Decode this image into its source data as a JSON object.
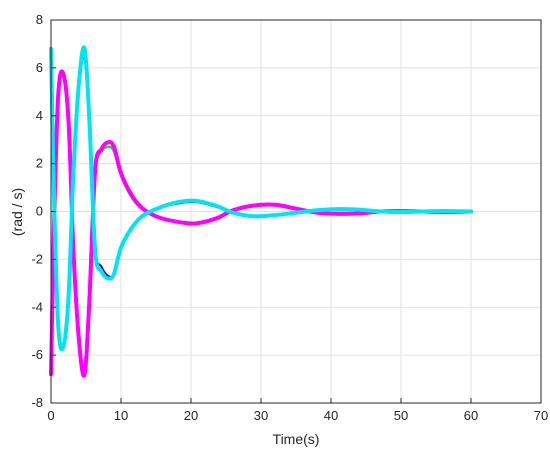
{
  "chart_data": {
    "type": "line",
    "title": "",
    "xlabel": "Time(s)",
    "ylabel": "(rad / s)",
    "xlim": [
      0,
      70
    ],
    "ylim": [
      -8,
      8
    ],
    "xticks": [
      0,
      10,
      20,
      30,
      40,
      50,
      60,
      70
    ],
    "yticks": [
      -8,
      -6,
      -4,
      -2,
      0,
      2,
      4,
      6,
      8
    ],
    "grid": true,
    "legend": "none",
    "series": [
      {
        "color": "#0000a0",
        "width": 2,
        "x": [
          0,
          0.4,
          1.0,
          1.7,
          2.5,
          3.2,
          4.0,
          4.8,
          5.5,
          6.3,
          7.2,
          8.2,
          9.0,
          10.0,
          11.5,
          13.0,
          15.0,
          17.5,
          20.5,
          23.5,
          26.0,
          29.0,
          32.0,
          35.0,
          38.0,
          41.0,
          44.0,
          47.0,
          50.0,
          53.0,
          56.0,
          60.0
        ],
        "y": [
          6.7,
          1.0,
          -4.5,
          -5.6,
          -3.5,
          1.5,
          5.2,
          6.4,
          3.5,
          -1.5,
          -2.3,
          -2.7,
          -2.6,
          -1.5,
          -0.7,
          -0.2,
          0.1,
          0.3,
          0.4,
          0.2,
          -0.05,
          -0.2,
          -0.15,
          -0.05,
          0.05,
          0.1,
          0.08,
          0.0,
          -0.02,
          0.0,
          0.02,
          0.0
        ]
      },
      {
        "color": "#3cc83c",
        "width": 2.5,
        "x": [
          0,
          0.4,
          1.0,
          1.7,
          2.5,
          3.2,
          4.0,
          4.8,
          5.5,
          6.3,
          7.2,
          8.2,
          9.0,
          10.0,
          11.5,
          13.0,
          15.0,
          17.5,
          20.5,
          23.5,
          26.0,
          29.0,
          32.0,
          35.0,
          38.0,
          41.0,
          44.0,
          47.0,
          50.0,
          53.0,
          56.0,
          60.0
        ],
        "y": [
          -6.7,
          -1.0,
          4.6,
          5.7,
          3.7,
          -1.6,
          -5.3,
          -6.5,
          -3.5,
          1.6,
          2.5,
          2.7,
          2.5,
          1.5,
          0.6,
          0.1,
          -0.2,
          -0.4,
          -0.5,
          -0.3,
          0.05,
          0.25,
          0.25,
          0.1,
          -0.05,
          -0.1,
          -0.08,
          0.0,
          0.02,
          0.0,
          -0.02,
          0.0
        ]
      },
      {
        "color": "#ff00ff",
        "width": 4,
        "x": [
          0,
          0.4,
          1.0,
          1.7,
          2.5,
          3.2,
          4.0,
          4.8,
          5.5,
          6.3,
          7.2,
          8.2,
          9.0,
          10.0,
          11.5,
          13.0,
          15.0,
          17.5,
          20.5,
          23.5,
          26.0,
          29.0,
          32.0,
          35.0,
          38.0,
          41.0,
          44.0,
          47.0,
          50.0,
          53.0,
          56.0,
          60.0
        ],
        "y": [
          -6.8,
          -1.0,
          4.7,
          5.8,
          3.8,
          -1.6,
          -5.4,
          -6.8,
          -3.6,
          1.7,
          2.6,
          2.9,
          2.7,
          1.6,
          0.7,
          0.15,
          -0.2,
          -0.4,
          -0.5,
          -0.3,
          0.05,
          0.25,
          0.28,
          0.12,
          -0.05,
          -0.1,
          -0.08,
          0.0,
          0.02,
          0.0,
          -0.02,
          0.0
        ]
      },
      {
        "color": "#00e5ee",
        "width": 4,
        "x": [
          0,
          0.4,
          1.0,
          1.7,
          2.5,
          3.2,
          4.0,
          4.8,
          5.5,
          6.3,
          7.2,
          8.2,
          9.0,
          10.0,
          11.5,
          13.0,
          15.0,
          17.5,
          20.5,
          23.5,
          26.0,
          29.0,
          32.0,
          35.0,
          38.0,
          41.0,
          44.0,
          47.0,
          50.0,
          53.0,
          56.0,
          60.0
        ],
        "y": [
          6.8,
          1.0,
          -4.6,
          -5.7,
          -3.6,
          1.6,
          5.4,
          6.8,
          3.7,
          -1.6,
          -2.5,
          -2.8,
          -2.6,
          -1.5,
          -0.7,
          -0.2,
          0.1,
          0.35,
          0.45,
          0.25,
          -0.05,
          -0.2,
          -0.15,
          -0.05,
          0.05,
          0.1,
          0.08,
          0.0,
          -0.02,
          0.0,
          0.02,
          0.0
        ]
      }
    ]
  }
}
